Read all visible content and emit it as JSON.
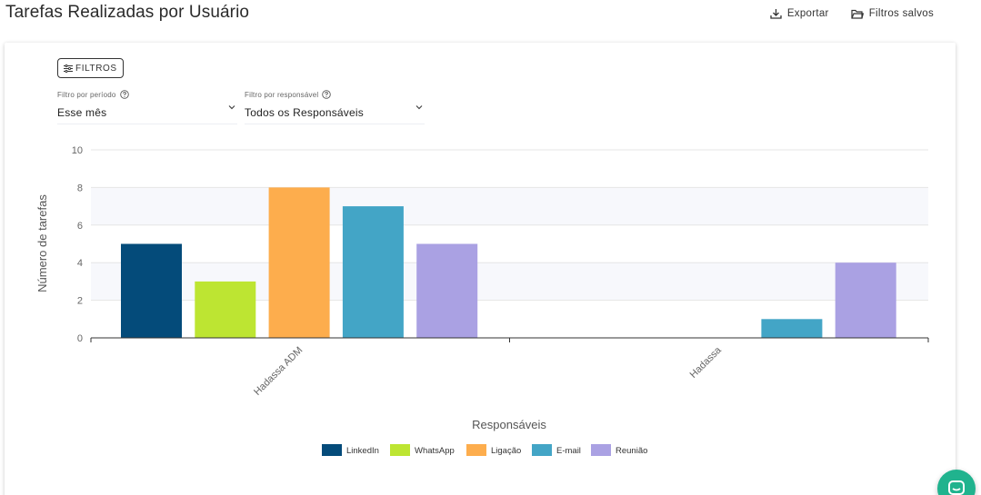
{
  "header": {
    "title": "Tarefas Realizadas por Usuário",
    "export_label": "Exportar",
    "saved_filters_label": "Filtros salvos"
  },
  "filters": {
    "button_label": "FILTROS",
    "period": {
      "label": "Filtro por período",
      "value": "Esse mês"
    },
    "responsible": {
      "label": "Filtro por responsável",
      "value": "Todos os Responsáveis"
    }
  },
  "colors": {
    "LinkedIn": "#044b7a",
    "WhatsApp": "#bde532",
    "Ligação": "#fdad4d",
    "E-mail": "#43a5c6",
    "Reunião": "#aaa1e3",
    "chat": "#20b38e"
  },
  "chart_data": {
    "type": "bar",
    "xlabel": "Responsáveis",
    "ylabel": "Número de tarefas",
    "ylim": [
      0,
      10
    ],
    "yticks": [
      0,
      2,
      4,
      6,
      8,
      10
    ],
    "categories": [
      "Hadassa ADM",
      "Hadassa"
    ],
    "series": [
      {
        "name": "LinkedIn",
        "values": [
          5,
          0
        ]
      },
      {
        "name": "WhatsApp",
        "values": [
          3,
          0
        ]
      },
      {
        "name": "Ligação",
        "values": [
          8,
          0
        ]
      },
      {
        "name": "E-mail",
        "values": [
          7,
          1
        ]
      },
      {
        "name": "Reunião",
        "values": [
          5,
          4
        ]
      }
    ],
    "legend": "bottom",
    "grid": true
  }
}
